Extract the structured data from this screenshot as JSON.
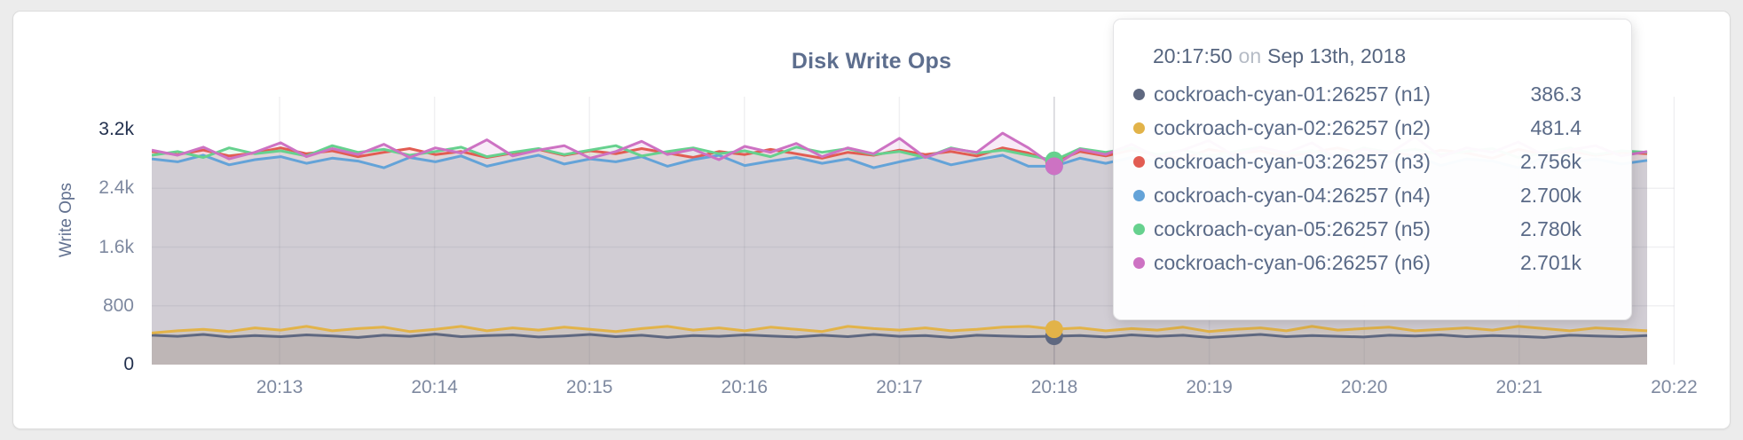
{
  "page": {
    "background": "#ececec"
  },
  "chart": {
    "title": "Disk Write Ops",
    "y_axis_label": "Write Ops"
  },
  "tooltip": {
    "time": "20:17:50",
    "connector": "on",
    "date": "Sep 13th, 2018",
    "rows": [
      {
        "name": "cockroach-cyan-01:26257 (n1)",
        "value": "386.3",
        "color": "#5f6880"
      },
      {
        "name": "cockroach-cyan-02:26257 (n2)",
        "value": "481.4",
        "color": "#e2b349"
      },
      {
        "name": "cockroach-cyan-03:26257 (n3)",
        "value": "2.756k",
        "color": "#e25c52"
      },
      {
        "name": "cockroach-cyan-04:26257 (n4)",
        "value": "2.700k",
        "color": "#64a3d8"
      },
      {
        "name": "cockroach-cyan-05:26257 (n5)",
        "value": "2.780k",
        "color": "#66d18e"
      },
      {
        "name": "cockroach-cyan-06:26257 (n6)",
        "value": "2.701k",
        "color": "#cd72c3"
      }
    ]
  },
  "chart_data": {
    "type": "line",
    "title": "Disk Write Ops",
    "xlabel": "",
    "ylabel": "Write Ops",
    "ylim": [
      0,
      3200
    ],
    "grid": true,
    "legend_position": "tooltip-overlay",
    "x_ticks": [
      "20:13",
      "20:14",
      "20:15",
      "20:16",
      "20:17",
      "20:18",
      "20:19",
      "20:20",
      "20:21",
      "20:22"
    ],
    "y_ticks": [
      "0",
      "800",
      "1.6k",
      "2.4k",
      "3.2k"
    ],
    "y_tick_values": [
      0,
      800,
      1600,
      2400,
      3200
    ],
    "sample_interval_seconds": 10,
    "x_domain": [
      "20:12:10",
      "20:21:50"
    ],
    "hover": {
      "index": 35,
      "time": "20:17:50",
      "date": "Sep 13th, 2018"
    },
    "series": [
      {
        "name": "cockroach-cyan-01:26257 (n1)",
        "color": "#5f6880",
        "hover_value": 386.3,
        "values": [
          400,
          385,
          410,
          375,
          395,
          380,
          405,
          390,
          370,
          400,
          385,
          415,
          380,
          395,
          405,
          375,
          390,
          410,
          380,
          400,
          370,
          395,
          385,
          405,
          390,
          375,
          400,
          380,
          410,
          385,
          395,
          370,
          400,
          390,
          380,
          386.3,
          395,
          375,
          405,
          385,
          400,
          370,
          390,
          410,
          380,
          395,
          385,
          375,
          400,
          390,
          405,
          380,
          395,
          385,
          370,
          400,
          390,
          380,
          395
        ]
      },
      {
        "name": "cockroach-cyan-02:26257 (n2)",
        "color": "#e2b349",
        "hover_value": 481.4,
        "values": [
          430,
          460,
          480,
          450,
          500,
          470,
          520,
          460,
          490,
          510,
          450,
          480,
          520,
          460,
          500,
          470,
          510,
          480,
          450,
          490,
          520,
          470,
          500,
          460,
          510,
          480,
          450,
          520,
          490,
          470,
          500,
          460,
          480,
          510,
          520,
          481.4,
          500,
          460,
          490,
          470,
          510,
          450,
          480,
          500,
          460,
          520,
          470,
          490,
          510,
          460,
          480,
          500,
          470,
          520,
          490,
          460,
          500,
          480,
          460
        ]
      },
      {
        "name": "cockroach-cyan-03:26257 (n3)",
        "color": "#e25c52",
        "hover_value": 2756,
        "values": [
          2900,
          2860,
          2920,
          2840,
          2880,
          2950,
          2870,
          2910,
          2830,
          2890,
          2940,
          2860,
          2900,
          2820,
          2880,
          2930,
          2850,
          2910,
          2870,
          2940,
          2880,
          2820,
          2900,
          2860,
          2930,
          2870,
          2810,
          2890,
          2850,
          2920,
          2860,
          2900,
          2840,
          2950,
          2880,
          2756,
          2900,
          2840,
          2920,
          2860,
          2800,
          2930,
          2870,
          2910,
          2830,
          2890,
          2950,
          2860,
          2900,
          2840,
          2920,
          2880,
          2810,
          2930,
          2860,
          2900,
          2850,
          2890,
          2870
        ]
      },
      {
        "name": "cockroach-cyan-04:26257 (n4)",
        "color": "#64a3d8",
        "hover_value": 2700,
        "values": [
          2800,
          2760,
          2850,
          2720,
          2790,
          2830,
          2740,
          2810,
          2770,
          2680,
          2820,
          2760,
          2840,
          2700,
          2780,
          2850,
          2730,
          2800,
          2760,
          2830,
          2700,
          2790,
          2850,
          2710,
          2770,
          2820,
          2740,
          2800,
          2680,
          2760,
          2830,
          2720,
          2790,
          2850,
          2700,
          2700,
          2810,
          2740,
          2820,
          2760,
          2690,
          2800,
          2850,
          2720,
          2780,
          2830,
          2700,
          2790,
          2760,
          2840,
          2710,
          2800,
          2770,
          2680,
          2820,
          2750,
          2800,
          2730,
          2780
        ]
      },
      {
        "name": "cockroach-cyan-05:26257 (n5)",
        "color": "#66d18e",
        "hover_value": 2780,
        "values": [
          2850,
          2900,
          2820,
          2950,
          2870,
          2910,
          2840,
          2980,
          2890,
          2930,
          2850,
          2900,
          2960,
          2830,
          2890,
          2940,
          2860,
          2920,
          2980,
          2840,
          2900,
          2950,
          2870,
          2910,
          2830,
          2960,
          2890,
          2940,
          2860,
          2900,
          2820,
          2950,
          2880,
          2920,
          2850,
          2780,
          2940,
          2890,
          2950,
          2860,
          2920,
          2840,
          2900,
          2960,
          2870,
          2910,
          2830,
          2950,
          2890,
          2930,
          2860,
          2900,
          2940,
          2820,
          2880,
          2950,
          2860,
          2910,
          2890
        ]
      },
      {
        "name": "cockroach-cyan-06:26257 (n6)",
        "color": "#cd72c3",
        "hover_value": 2701,
        "values": [
          2920,
          2850,
          2960,
          2800,
          2890,
          3020,
          2830,
          2940,
          2860,
          3000,
          2820,
          2950,
          2880,
          3060,
          2840,
          2920,
          2980,
          2810,
          2900,
          3040,
          2860,
          2930,
          2790,
          2970,
          2890,
          3010,
          2830,
          2950,
          2870,
          3080,
          2820,
          2940,
          2890,
          3150,
          2950,
          2701,
          2930,
          2860,
          3000,
          2820,
          2920,
          3050,
          2840,
          2960,
          2880,
          3020,
          2800,
          2930,
          2870,
          3100,
          2830,
          2950,
          2890,
          3030,
          2850,
          2920,
          2980,
          2840,
          2900
        ]
      }
    ]
  }
}
